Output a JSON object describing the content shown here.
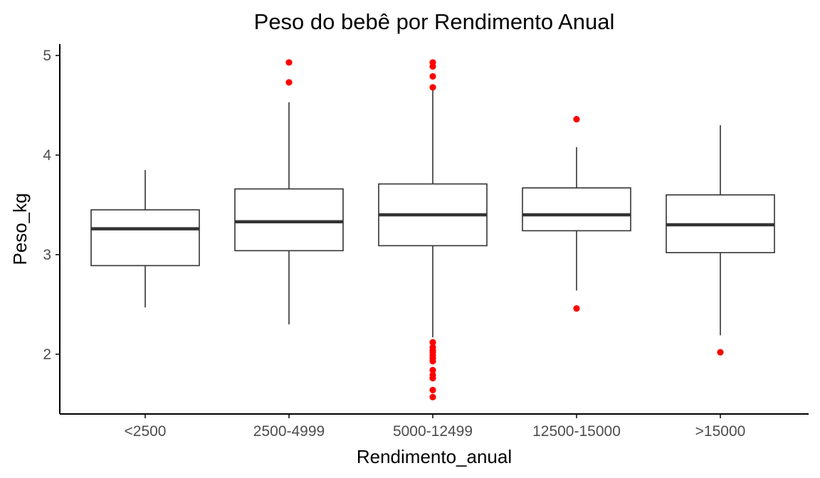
{
  "chart_data": {
    "type": "box",
    "title": "Peso do bebê por Rendimento Anual",
    "xlabel": "Rendimento_anual",
    "ylabel": "Peso_kg",
    "ylim": [
      1.5,
      5.05
    ],
    "yticks": [
      "2",
      "3",
      "4",
      "5"
    ],
    "ytick_values": [
      2,
      3,
      4,
      5
    ],
    "grid": false,
    "colors": {
      "box_stroke": "#333333",
      "outlier": "#ff0000",
      "axis": "#000000",
      "tick_text": "#4d4d4d"
    },
    "categories": [
      "<2500",
      "2500-4999",
      "5000-12499",
      "12500-15000",
      ">15000"
    ],
    "boxes": [
      {
        "category": "<2500",
        "whisker_low": 2.47,
        "q1": 2.89,
        "median": 3.26,
        "q3": 3.45,
        "whisker_high": 3.85,
        "outliers": []
      },
      {
        "category": "2500-4999",
        "whisker_low": 2.3,
        "q1": 3.04,
        "median": 3.33,
        "q3": 3.66,
        "whisker_high": 4.53,
        "outliers": [
          4.73,
          4.93
        ]
      },
      {
        "category": "5000-12499",
        "whisker_low": 2.17,
        "q1": 3.09,
        "median": 3.4,
        "q3": 3.71,
        "whisker_high": 4.66,
        "outliers": [
          1.57,
          1.64,
          1.76,
          1.79,
          1.84,
          1.93,
          1.96,
          1.99,
          2.02,
          2.04,
          2.07,
          2.12,
          4.68,
          4.79,
          4.89,
          4.93
        ]
      },
      {
        "category": "12500-15000",
        "whisker_low": 2.64,
        "q1": 3.24,
        "median": 3.4,
        "q3": 3.67,
        "whisker_high": 4.08,
        "outliers": [
          2.46,
          4.36
        ]
      },
      {
        "category": ">15000",
        "whisker_low": 2.19,
        "q1": 3.02,
        "median": 3.3,
        "q3": 3.6,
        "whisker_high": 4.3,
        "outliers": [
          2.02
        ]
      }
    ]
  }
}
